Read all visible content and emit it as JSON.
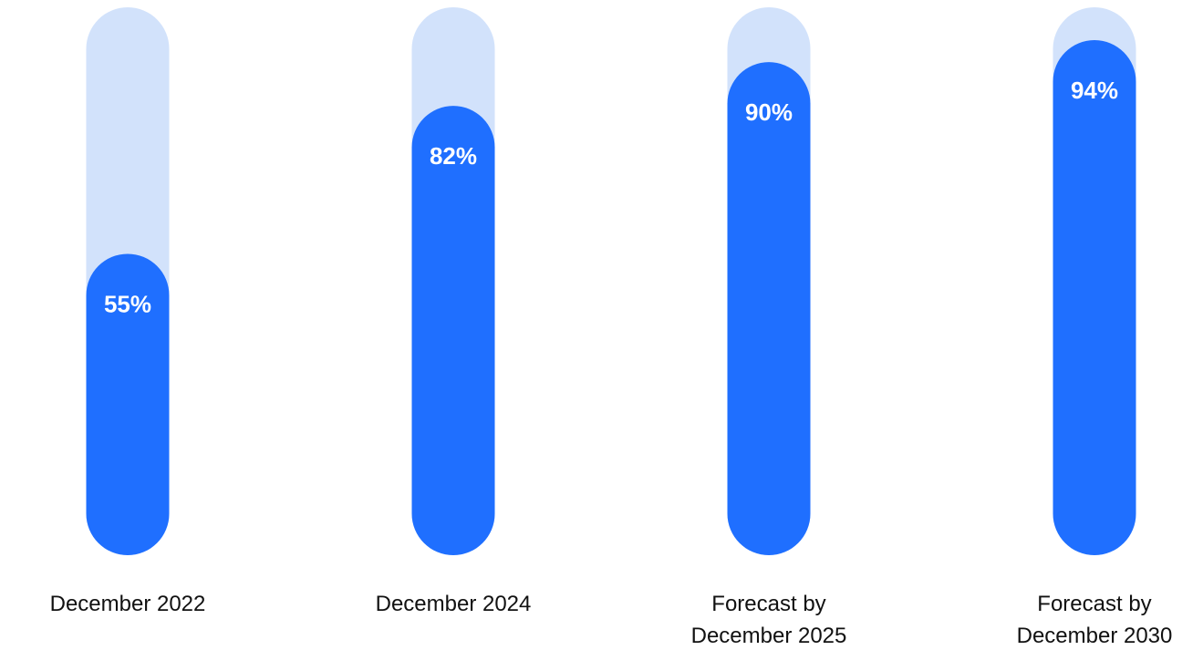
{
  "chart_data": {
    "type": "bar",
    "categories": [
      "December 2022",
      "December 2024",
      "Forecast by December 2025",
      "Forecast by December 2030"
    ],
    "category_label_lines": [
      [
        "December 2022"
      ],
      [
        "December 2024"
      ],
      [
        "Forecast by",
        "December 2025"
      ],
      [
        "Forecast by",
        "December 2030"
      ]
    ],
    "values": [
      55,
      82,
      90,
      94
    ],
    "value_labels": [
      "55%",
      "82%",
      "90%",
      "94%"
    ],
    "ylim": [
      0,
      100
    ],
    "unit": "%",
    "title": "",
    "xlabel": "",
    "ylabel": "",
    "grid": false,
    "legend": "none",
    "colors": {
      "bar": "#1f6fff",
      "track": "#d2e2fb",
      "value_label": "#ffffff",
      "category_label": "#111111"
    }
  }
}
